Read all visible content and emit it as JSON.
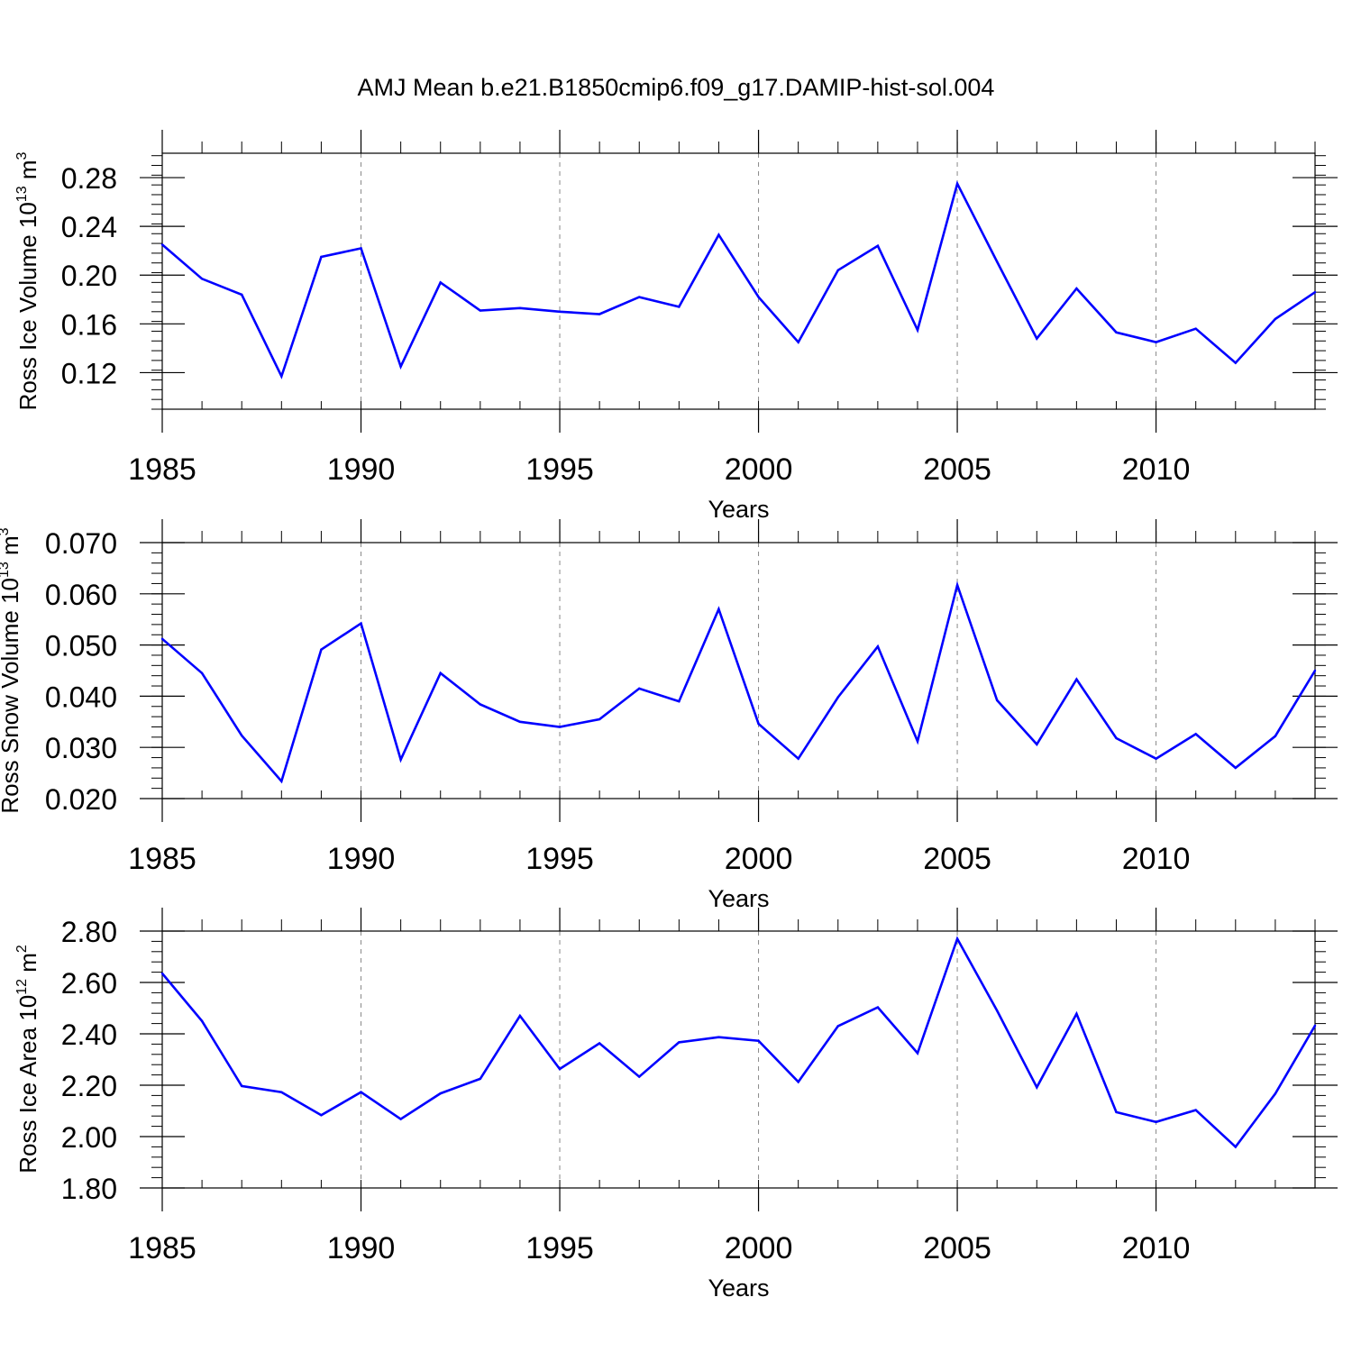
{
  "title": "AMJ Mean b.e21.B1850cmip6.f09_g17.DAMIP-hist-sol.004",
  "line_color": "#0000ff",
  "chart_data": [
    {
      "type": "line",
      "ylabel": "Ross Ice Volume 10",
      "ylabel_exp": "13",
      "ylabel_unit": "m",
      "ylabel_unit_exp": "3",
      "xlabel": "Years",
      "xlim": [
        1985,
        2014
      ],
      "ylim": [
        0.09,
        0.3
      ],
      "x_ticks": [
        1985,
        1990,
        1995,
        2000,
        2005,
        2010
      ],
      "y_ticks": [
        "0.12",
        "0.16",
        "0.20",
        "0.24",
        "0.28"
      ],
      "y_tick_values": [
        0.12,
        0.16,
        0.2,
        0.24,
        0.28
      ],
      "x": [
        1985,
        1986,
        1987,
        1988,
        1989,
        1990,
        1991,
        1992,
        1993,
        1994,
        1995,
        1996,
        1997,
        1998,
        1999,
        2000,
        2001,
        2002,
        2003,
        2004,
        2005,
        2006,
        2007,
        2008,
        2009,
        2010,
        2011,
        2012,
        2013,
        2014
      ],
      "y": [
        0.225,
        0.197,
        0.184,
        0.117,
        0.215,
        0.222,
        0.125,
        0.194,
        0.171,
        0.173,
        0.17,
        0.168,
        0.182,
        0.174,
        0.233,
        0.182,
        0.145,
        0.204,
        0.224,
        0.155,
        0.275,
        0.211,
        0.148,
        0.189,
        0.153,
        0.145,
        0.156,
        0.128,
        0.164,
        0.186
      ],
      "grid": "dashed vertical lines at major x ticks"
    },
    {
      "type": "line",
      "ylabel": "Ross Snow Volume 10",
      "ylabel_exp": "13",
      "ylabel_unit": "m",
      "ylabel_unit_exp": "3",
      "xlabel": "Years",
      "xlim": [
        1985,
        2014
      ],
      "ylim": [
        0.02,
        0.07
      ],
      "x_ticks": [
        1985,
        1990,
        1995,
        2000,
        2005,
        2010
      ],
      "y_ticks": [
        "0.020",
        "0.030",
        "0.040",
        "0.050",
        "0.060",
        "0.070"
      ],
      "y_tick_values": [
        0.02,
        0.03,
        0.04,
        0.05,
        0.06,
        0.07
      ],
      "x": [
        1985,
        1986,
        1987,
        1988,
        1989,
        1990,
        1991,
        1992,
        1993,
        1994,
        1995,
        1996,
        1997,
        1998,
        1999,
        2000,
        2001,
        2002,
        2003,
        2004,
        2005,
        2006,
        2007,
        2008,
        2009,
        2010,
        2011,
        2012,
        2013,
        2014
      ],
      "y": [
        0.0512,
        0.0445,
        0.0323,
        0.0234,
        0.0491,
        0.0542,
        0.0276,
        0.0445,
        0.0384,
        0.035,
        0.034,
        0.0355,
        0.0415,
        0.039,
        0.057,
        0.0346,
        0.0278,
        0.0398,
        0.0497,
        0.0312,
        0.0617,
        0.0392,
        0.0306,
        0.0433,
        0.0318,
        0.0278,
        0.0326,
        0.026,
        0.0322,
        0.045
      ],
      "grid": "dashed vertical lines at major x ticks"
    },
    {
      "type": "line",
      "ylabel": "Ross Ice Area 10",
      "ylabel_exp": "12",
      "ylabel_unit": "m",
      "ylabel_unit_exp": "2",
      "xlabel": "Years",
      "xlim": [
        1985,
        2014
      ],
      "ylim": [
        1.8,
        2.8
      ],
      "x_ticks": [
        1985,
        1990,
        1995,
        2000,
        2005,
        2010
      ],
      "y_ticks": [
        "1.80",
        "2.00",
        "2.20",
        "2.40",
        "2.60",
        "2.80"
      ],
      "y_tick_values": [
        1.8,
        2.0,
        2.2,
        2.4,
        2.6,
        2.8
      ],
      "x": [
        1985,
        1986,
        1987,
        1988,
        1989,
        1990,
        1991,
        1992,
        1993,
        1994,
        1995,
        1996,
        1997,
        1998,
        1999,
        2000,
        2001,
        2002,
        2003,
        2004,
        2005,
        2006,
        2007,
        2008,
        2009,
        2010,
        2011,
        2012,
        2013,
        2014
      ],
      "y": [
        2.635,
        2.45,
        2.197,
        2.173,
        2.083,
        2.173,
        2.068,
        2.168,
        2.225,
        2.47,
        2.263,
        2.363,
        2.233,
        2.367,
        2.387,
        2.373,
        2.213,
        2.43,
        2.503,
        2.325,
        2.77,
        2.49,
        2.192,
        2.478,
        2.095,
        2.057,
        2.103,
        1.96,
        2.167,
        2.432
      ],
      "grid": "dashed vertical lines at major x ticks"
    }
  ]
}
